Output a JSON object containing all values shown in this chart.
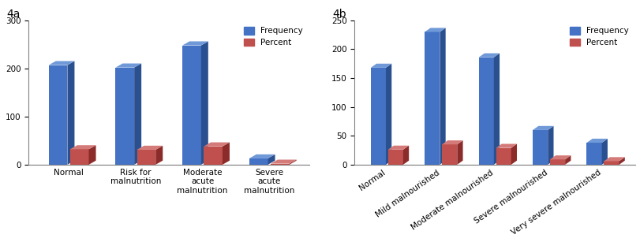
{
  "chart4a": {
    "label": "4a",
    "categories": [
      "Normal",
      "Risk for\nmalnutrition",
      "Moderate\nacute\nmalnutrition",
      "Severe\nacute\nmalnutrition"
    ],
    "frequency": [
      207,
      202,
      248,
      13
    ],
    "percent": [
      32,
      31,
      38,
      2
    ],
    "ylim": [
      0,
      300
    ],
    "yticks": [
      0,
      100,
      200,
      300
    ],
    "xtick_rotation": 0,
    "xtick_ha": "center"
  },
  "chart4b": {
    "label": "4b",
    "categories": [
      "Normal",
      "Mild malnourished",
      "Moderate malnourished",
      "Severe malnourished",
      "Very severe malnourished"
    ],
    "frequency": [
      168,
      230,
      186,
      60,
      38
    ],
    "percent": [
      26,
      35,
      29,
      9,
      6
    ],
    "ylim": [
      0,
      250
    ],
    "yticks": [
      0,
      50,
      100,
      150,
      200,
      250
    ],
    "xtick_rotation": 35,
    "xtick_ha": "right"
  },
  "bar_color_freq": "#4472C4",
  "bar_color_freq_top": "#7099D8",
  "bar_color_freq_side": "#2B5090",
  "bar_color_pct": "#C0504D",
  "bar_color_pct_top": "#D47A78",
  "bar_color_pct_side": "#8B2C2A",
  "bar_width": 0.28,
  "bar_gap": 0.04,
  "legend_labels": [
    "Frequency",
    "Percent"
  ],
  "background_color": "#ffffff",
  "tick_fontsize": 7.5,
  "label_fontsize": 10
}
